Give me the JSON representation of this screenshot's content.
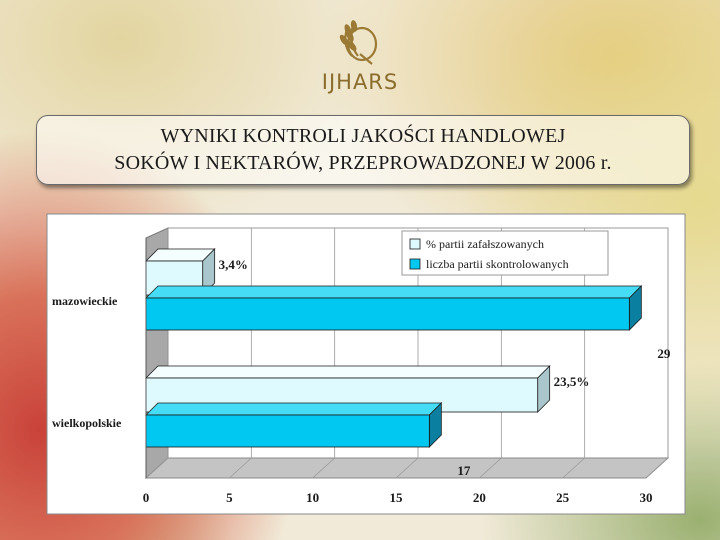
{
  "logo": {
    "text": "IJHARS",
    "icon": "wheat-leaf-logo-icon"
  },
  "title": {
    "line1": "WYNIKI KONTROLI JAKOŚCI HANDLOWEJ",
    "line2": "SOKÓW I NEKTARÓW, PRZEPROWADZONEJ W 2006 r."
  },
  "chart_data": {
    "type": "bar",
    "orientation": "horizontal",
    "style": "3d",
    "categories": [
      "mazowieckie",
      "wielkopolskie"
    ],
    "series": [
      {
        "name": "% partii zafałszowanych",
        "values": [
          3.4,
          23.5
        ],
        "labels": [
          "3,4%",
          "23,5%"
        ],
        "color": "#dffafe"
      },
      {
        "name": "liczba partii skontrolowanych",
        "values": [
          29,
          17
        ],
        "labels": [
          "29",
          "17"
        ],
        "color": "#00c8f0"
      }
    ],
    "x_ticks": [
      "0",
      "5",
      "10",
      "15",
      "20",
      "25",
      "30"
    ],
    "xlim": [
      0,
      30
    ],
    "grid": true,
    "legend_position": "top-right"
  }
}
